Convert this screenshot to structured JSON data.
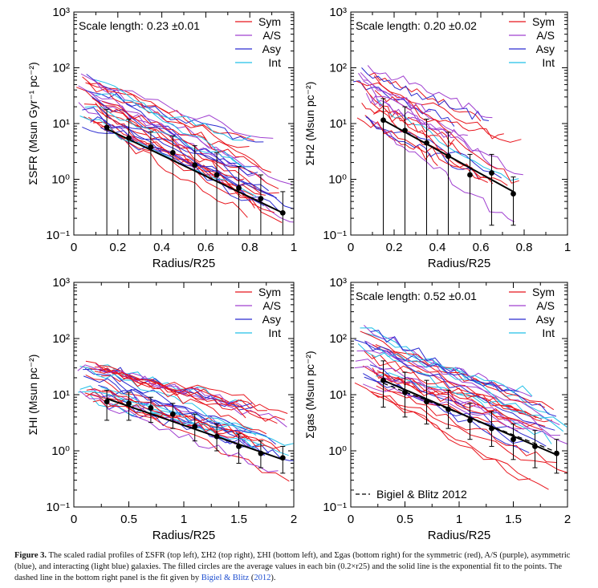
{
  "caption": {
    "label": "Figure 3.",
    "text": "The scaled radial profiles of ΣSFR (top left), ΣH2 (top right), ΣHI (bottom left), and Σgas (bottom right) for the symmetric (red), A/S (purple), asymmetric (blue), and interacting (light blue) galaxies. The filled circles are the average values in each bin (0.2×r25) and the solid line is the exponential fit to the points. The dashed line in the bottom right panel is the fit given by",
    "cite": "Bigiel & Blitz",
    "year": "2012",
    "close": ")."
  },
  "legend": {
    "entries": [
      {
        "name": "Sym",
        "color": "#e8141c"
      },
      {
        "name": "A/S",
        "color": "#a040d0"
      },
      {
        "name": "Asy",
        "color": "#2a2ad0"
      },
      {
        "name": "Int",
        "color": "#22c0e8"
      }
    ]
  },
  "chart_data": [
    {
      "id": "sfr",
      "type": "line",
      "scale_note": "Scale length: 0.23 ±0.01",
      "xlabel": "Radius/R25",
      "ylabel": "ΣSFR (Msun Gyr⁻¹ pc⁻²)",
      "xlim": [
        0,
        1
      ],
      "ylim_log10": [
        -1,
        3
      ],
      "x_ticks": [
        "0",
        "0.2",
        "0.4",
        "0.6",
        "0.8",
        "1"
      ],
      "x_tick_values": [
        0,
        0.2,
        0.4,
        0.6,
        0.8,
        1
      ],
      "y_ticks": [
        "10⁻¹",
        "10⁰",
        "10¹",
        "10²",
        "10³"
      ],
      "binned_points": {
        "x": [
          0.15,
          0.25,
          0.35,
          0.45,
          0.55,
          0.65,
          0.75,
          0.85,
          0.95
        ],
        "y": [
          8.5,
          5.5,
          3.8,
          3.0,
          1.8,
          1.2,
          0.7,
          0.45,
          0.25
        ],
        "err_low": [
          0.1,
          0.1,
          0.1,
          0.1,
          0.1,
          0.1,
          0.1,
          0.1,
          0.1
        ],
        "err_high": [
          18,
          12,
          7,
          6,
          4,
          3,
          1.7,
          1.2,
          0.6
        ]
      },
      "fit": {
        "x": [
          0.15,
          0.95
        ],
        "y": [
          8.0,
          0.25
        ]
      }
    },
    {
      "id": "h2",
      "type": "line",
      "scale_note": "Scale length: 0.20 ±0.02",
      "xlabel": "Radius/R25",
      "ylabel": "ΣH2 (Msun pc⁻²)",
      "xlim": [
        0,
        1
      ],
      "ylim_log10": [
        -1,
        3
      ],
      "x_ticks": [
        "0",
        "0.2",
        "0.4",
        "0.6",
        "0.8",
        "1"
      ],
      "x_tick_values": [
        0,
        0.2,
        0.4,
        0.6,
        0.8,
        1
      ],
      "y_ticks": [
        "10⁻¹",
        "10⁰",
        "10¹",
        "10²",
        "10³"
      ],
      "binned_points": {
        "x": [
          0.15,
          0.25,
          0.35,
          0.45,
          0.55,
          0.65,
          0.75
        ],
        "y": [
          11.5,
          7.5,
          4.5,
          2.6,
          1.2,
          1.3,
          0.55
        ],
        "err_low": [
          0.1,
          0.1,
          0.1,
          0.1,
          0.1,
          0.15,
          0.15
        ],
        "err_high": [
          28,
          20,
          12,
          7,
          2.8,
          2.8,
          1.1
        ]
      },
      "fit": {
        "x": [
          0.15,
          0.75
        ],
        "y": [
          11.5,
          0.6
        ]
      }
    },
    {
      "id": "hi",
      "type": "line",
      "scale_note": "",
      "xlabel": "Radius/R25",
      "ylabel": "ΣHI (Msun pc⁻²)",
      "xlim": [
        0,
        2
      ],
      "ylim_log10": [
        -1,
        3
      ],
      "x_ticks": [
        "0",
        "0.5",
        "1",
        "1.5",
        "2"
      ],
      "x_tick_values": [
        0,
        0.5,
        1,
        1.5,
        2
      ],
      "y_ticks": [
        "10⁻¹",
        "10⁰",
        "10¹",
        "10²",
        "10³"
      ],
      "binned_points": {
        "x": [
          0.3,
          0.5,
          0.7,
          0.9,
          1.1,
          1.3,
          1.5,
          1.7,
          1.9
        ],
        "y": [
          7.5,
          7.0,
          5.8,
          4.5,
          2.7,
          1.8,
          1.2,
          0.9,
          0.75
        ],
        "err_low": [
          3.5,
          3.5,
          3.2,
          2.5,
          1.5,
          1.0,
          0.6,
          0.5,
          0.4
        ],
        "err_high": [
          12,
          11,
          9,
          7,
          4.5,
          3.0,
          2.0,
          1.5,
          1.2
        ]
      },
      "fit": {
        "x": [
          0.3,
          1.9
        ],
        "y": [
          8.5,
          0.7
        ]
      }
    },
    {
      "id": "gas",
      "type": "line",
      "scale_note": "Scale length: 0.52 ±0.01",
      "xlabel": "Radius/R25",
      "ylabel": "Σgas (Msun pc⁻²)",
      "xlim": [
        0,
        2
      ],
      "ylim_log10": [
        -1,
        3
      ],
      "x_ticks": [
        "0",
        "0.5",
        "1",
        "1.5",
        "2"
      ],
      "x_tick_values": [
        0,
        0.5,
        1,
        1.5,
        2
      ],
      "y_ticks": [
        "10⁻¹",
        "10⁰",
        "10¹",
        "10²",
        "10³"
      ],
      "binned_points": {
        "x": [
          0.3,
          0.5,
          0.7,
          0.9,
          1.1,
          1.3,
          1.5,
          1.7,
          1.9
        ],
        "y": [
          18,
          11,
          7.5,
          5.5,
          3.5,
          2.5,
          1.6,
          1.2,
          0.9
        ],
        "err_low": [
          6,
          4,
          3,
          2.5,
          1.6,
          1.2,
          0.7,
          0.5,
          0.4
        ],
        "err_high": [
          40,
          25,
          18,
          12,
          7,
          5,
          3,
          2.3,
          1.6
        ]
      },
      "fit": {
        "x": [
          0.3,
          1.9
        ],
        "y": [
          18,
          0.85
        ]
      },
      "reference_fit": {
        "label": "Bigiel & Blitz 2012",
        "x": [
          0.3,
          1.9
        ],
        "y": [
          16,
          0.95
        ]
      }
    }
  ]
}
